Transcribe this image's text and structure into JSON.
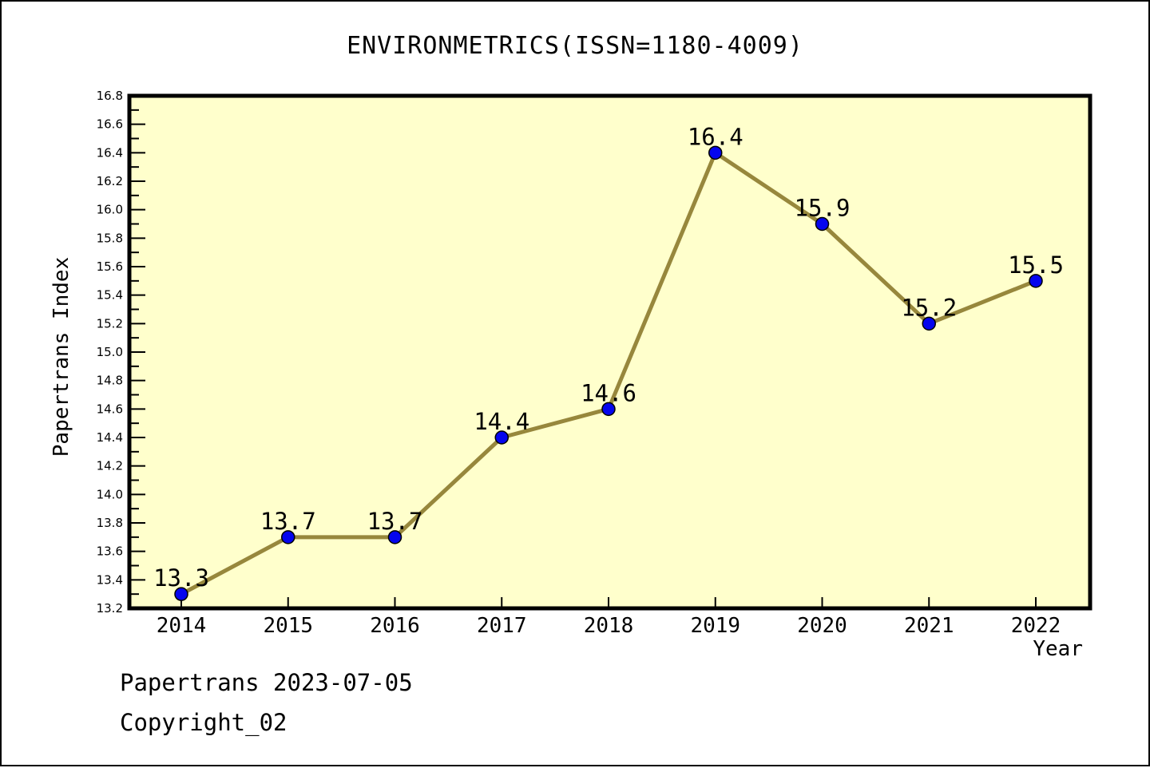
{
  "header": {
    "title": "ENVIRONMETRICS(ISSN=1180-4009)"
  },
  "footer": {
    "date_line": "Papertrans 2023-07-05",
    "copyright_line": "Copyright_02"
  },
  "chart_data": {
    "type": "line",
    "categories": [
      "2014",
      "2015",
      "2016",
      "2017",
      "2018",
      "2019",
      "2020",
      "2021",
      "2022"
    ],
    "values": [
      13.3,
      13.7,
      13.7,
      14.4,
      14.6,
      16.4,
      15.9,
      15.2,
      15.5
    ],
    "title": "ENVIRONMETRICS(ISSN=1180-4009)",
    "xlabel": "Year",
    "ylabel": "Papertrans Index",
    "ylim": [
      13.2,
      16.8
    ],
    "ytick_major_step": 0.2,
    "ytick_minor_step": 0.1,
    "grid": false,
    "legend": "none",
    "point_labels_visible": true,
    "colors": {
      "line": "#97873C",
      "marker_fill": "#0505EE",
      "marker_edge": "#000000",
      "plot_background": "#FFFFCC",
      "page_background": "#FFFFFF",
      "axis": "#000000",
      "text": "#000000"
    }
  }
}
